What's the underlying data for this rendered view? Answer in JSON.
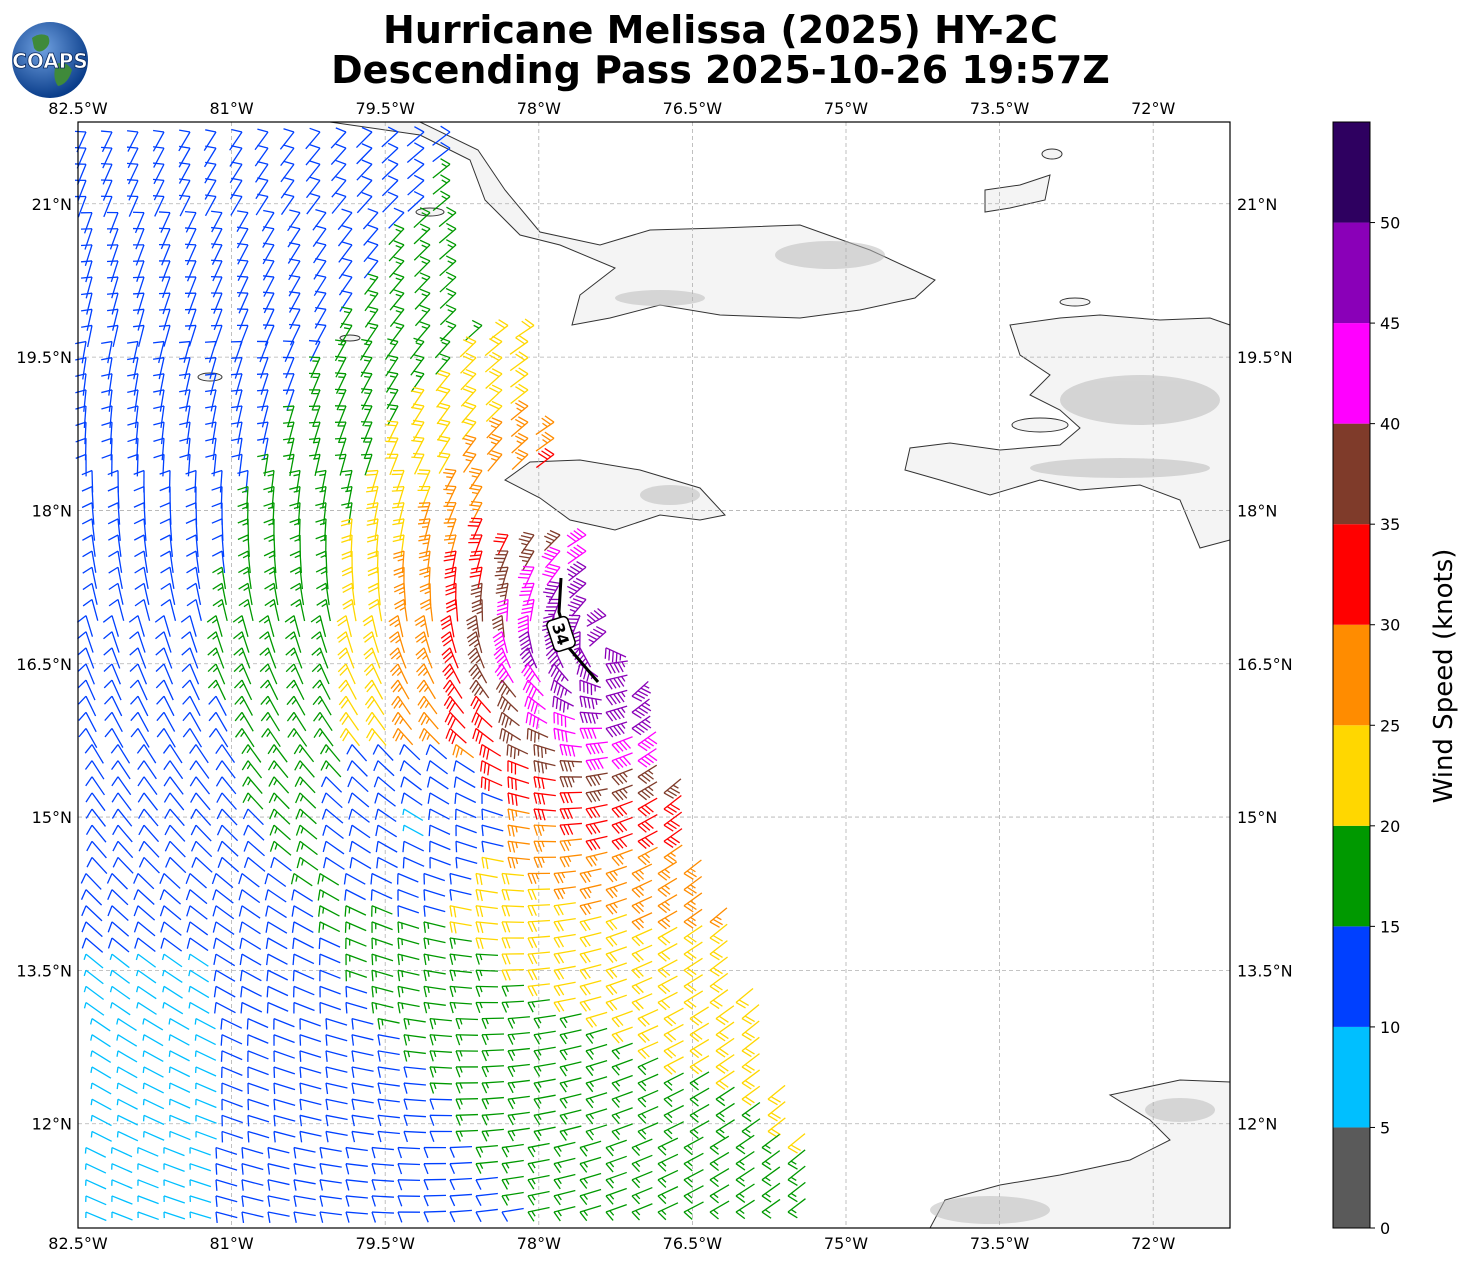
{
  "header": {
    "title_line1": "Hurricane Melissa (2025) HY-2C",
    "title_line2": "Descending Pass 2025-10-26 19:57Z",
    "logo_text": "COAPS"
  },
  "map": {
    "lon_ticks": [
      "82.5°W",
      "81°W",
      "79.5°W",
      "78°W",
      "76.5°W",
      "75°W",
      "73.5°W",
      "72°W"
    ],
    "lon_values": [
      -82.5,
      -81,
      -79.5,
      -78,
      -76.5,
      -75,
      -73.5,
      -72
    ],
    "lat_ticks": [
      "21°N",
      "19.5°N",
      "18°N",
      "16.5°N",
      "15°N",
      "13.5°N",
      "12°N"
    ],
    "lat_values": [
      21,
      19.5,
      18,
      16.5,
      15,
      13.5,
      12
    ],
    "extent": {
      "lon_min": -82.5,
      "lon_max": -71.25,
      "lat_min": 10.98,
      "lat_max": 21.8
    },
    "storm_center": {
      "lon": -77.3,
      "lat": 16.7
    },
    "track_label": "34"
  },
  "colorbar": {
    "label": "Wind Speed (knots)",
    "ticks": [
      "0",
      "5",
      "10",
      "15",
      "20",
      "25",
      "30",
      "35",
      "40",
      "45",
      "50"
    ],
    "bins": [
      {
        "min": 0,
        "max": 5,
        "color": "#5a5a5a"
      },
      {
        "min": 5,
        "max": 10,
        "color": "#00bfff"
      },
      {
        "min": 10,
        "max": 15,
        "color": "#0040ff"
      },
      {
        "min": 15,
        "max": 20,
        "color": "#009900"
      },
      {
        "min": 20,
        "max": 25,
        "color": "#ffd700"
      },
      {
        "min": 25,
        "max": 30,
        "color": "#ff8c00"
      },
      {
        "min": 30,
        "max": 35,
        "color": "#ff0000"
      },
      {
        "min": 35,
        "max": 40,
        "color": "#7f3b2a"
      },
      {
        "min": 40,
        "max": 45,
        "color": "#ff00ff"
      },
      {
        "min": 45,
        "max": 50,
        "color": "#8a00b8"
      },
      {
        "min": 50,
        "max": 55,
        "color": "#2e0060"
      }
    ]
  }
}
